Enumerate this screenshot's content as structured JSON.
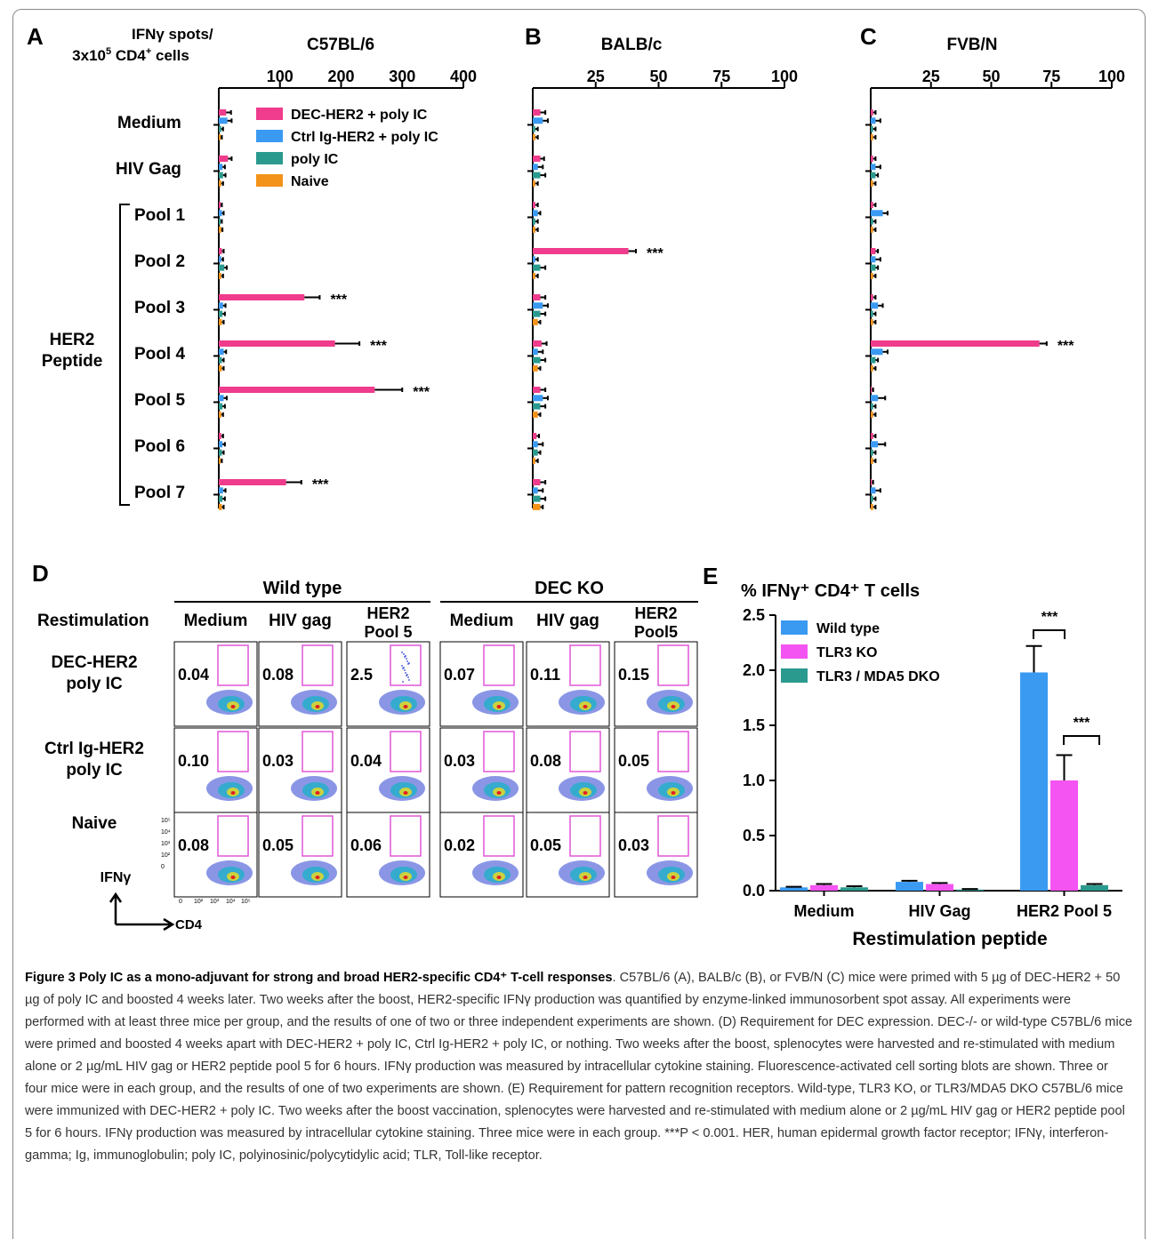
{
  "figure": {
    "panel_letters": [
      "A",
      "B",
      "C",
      "D",
      "E"
    ],
    "colors": {
      "dec_her2": "#ef3c8c",
      "ctrl_ig": "#3a9af2",
      "poly_ic": "#2b9a8e",
      "naive": "#f39319",
      "wild_type": "#3a9af2",
      "tlr3_ko": "#f454f1",
      "tlr3_mda5": "#2b9a8e",
      "gate": "#e056d8"
    }
  },
  "panelA_header": {
    "line1": "IFNγ spots/",
    "line2_pre": "3x10",
    "line2_sup1": "5",
    "line2_mid": " CD4",
    "line2_sup2": "+",
    "line2_post": " cells"
  },
  "row_labels": [
    "Medium",
    "HIV Gag",
    "Pool 1",
    "Pool 2",
    "Pool 3",
    "Pool 4",
    "Pool 5",
    "Pool 6",
    "Pool 7"
  ],
  "her2_label": [
    "HER2",
    "Peptide"
  ],
  "significance": "***",
  "legend_A": [
    "DEC-HER2 + poly IC",
    "Ctrl Ig-HER2 + poly IC",
    "poly IC",
    "Naive"
  ],
  "chart_data": [
    {
      "type": "bar",
      "panel": "A",
      "title": "C57BL/6",
      "orientation": "horizontal",
      "categories": [
        "Medium",
        "HIV Gag",
        "Pool 1",
        "Pool 2",
        "Pool 3",
        "Pool 4",
        "Pool 5",
        "Pool 6",
        "Pool 7"
      ],
      "xlim": [
        0,
        400
      ],
      "xticks": [
        100,
        200,
        300,
        400
      ],
      "series": [
        {
          "name": "DEC-HER2 + poly IC",
          "values": [
            12,
            15,
            3,
            5,
            140,
            190,
            255,
            4,
            110
          ],
          "errors": [
            8,
            6,
            2,
            3,
            25,
            40,
            45,
            3,
            25
          ]
        },
        {
          "name": "Ctrl Ig-HER2 + poly IC",
          "values": [
            14,
            6,
            5,
            4,
            7,
            8,
            8,
            6,
            7
          ],
          "errors": [
            7,
            4,
            3,
            3,
            4,
            4,
            5,
            4,
            4
          ]
        },
        {
          "name": "poly IC",
          "values": [
            4,
            7,
            3,
            9,
            6,
            5,
            6,
            5,
            6
          ],
          "errors": [
            3,
            4,
            2,
            4,
            4,
            3,
            4,
            3,
            4
          ]
        },
        {
          "name": "Naive",
          "values": [
            3,
            4,
            4,
            4,
            5,
            5,
            4,
            3,
            5
          ],
          "errors": [
            2,
            3,
            2,
            3,
            3,
            3,
            3,
            2,
            3
          ]
        }
      ],
      "significant": [
        "Pool 3",
        "Pool 4",
        "Pool 5",
        "Pool 7"
      ]
    },
    {
      "type": "bar",
      "panel": "B",
      "title": "BALB/c",
      "orientation": "horizontal",
      "categories": [
        "Medium",
        "HIV Gag",
        "Pool 1",
        "Pool 2",
        "Pool 3",
        "Pool 4",
        "Pool 5",
        "Pool 6",
        "Pool 7"
      ],
      "xlim": [
        0,
        100
      ],
      "xticks": [
        25,
        50,
        75,
        100
      ],
      "series": [
        {
          "name": "DEC-HER2 + poly IC",
          "values": [
            3,
            3,
            1,
            38,
            3,
            3.5,
            3,
            1.5,
            3
          ],
          "errors": [
            2,
            1.5,
            1,
            3,
            2,
            2,
            2,
            1,
            2
          ]
        },
        {
          "name": "Ctrl Ig-HER2 + poly IC",
          "values": [
            4,
            2,
            2,
            1,
            4,
            2,
            4,
            2,
            2
          ],
          "errors": [
            2,
            2,
            1,
            1,
            2,
            2,
            2,
            2,
            2
          ]
        },
        {
          "name": "poly IC",
          "values": [
            1,
            3,
            1,
            3,
            3,
            3,
            3,
            2,
            3
          ],
          "errors": [
            1,
            2,
            1,
            2,
            2,
            2,
            2,
            1,
            2
          ]
        },
        {
          "name": "Naive",
          "values": [
            1,
            1,
            1,
            1,
            2,
            2,
            2,
            1,
            3
          ],
          "errors": [
            1,
            1,
            1,
            1,
            1,
            1,
            1,
            1,
            1
          ]
        }
      ],
      "significant": [
        "Pool 2"
      ]
    },
    {
      "type": "bar",
      "panel": "C",
      "title": "FVB/N",
      "orientation": "horizontal",
      "categories": [
        "Medium",
        "HIV Gag",
        "Pool 1",
        "Pool 2",
        "Pool 3",
        "Pool 4",
        "Pool 5",
        "Pool 6",
        "Pool 7"
      ],
      "xlim": [
        0,
        100
      ],
      "xticks": [
        25,
        50,
        75,
        100
      ],
      "series": [
        {
          "name": "DEC-HER2 + poly IC",
          "values": [
            1,
            1,
            1,
            2,
            1,
            70,
            0.5,
            1,
            0.5
          ],
          "errors": [
            1,
            1,
            1,
            1,
            1,
            3,
            0.5,
            1,
            0.5
          ]
        },
        {
          "name": "Ctrl Ig-HER2 + poly IC",
          "values": [
            2,
            2,
            5,
            2,
            3,
            5,
            3,
            3,
            2
          ],
          "errors": [
            2,
            2,
            2,
            2,
            2,
            2,
            3,
            3,
            2
          ]
        },
        {
          "name": "poly IC",
          "values": [
            1,
            2,
            1,
            2,
            1,
            2,
            1,
            1,
            1
          ],
          "errors": [
            1,
            1,
            1,
            1,
            1,
            1,
            1,
            1,
            1
          ]
        },
        {
          "name": "Naive",
          "values": [
            1,
            1,
            1,
            1,
            1,
            1,
            1,
            1,
            1
          ],
          "errors": [
            1,
            1,
            1,
            1,
            1,
            1,
            1,
            1,
            1
          ]
        }
      ],
      "significant": [
        "Pool 4"
      ]
    },
    {
      "type": "bar",
      "panel": "E",
      "title": "% IFNγ⁺ CD4⁺ T cells",
      "xlabel": "Restimulation peptide",
      "categories": [
        "Medium",
        "HIV Gag",
        "HER2 Pool 5"
      ],
      "ylim": [
        0,
        2.5
      ],
      "yticks": [
        "0.0",
        "0.5",
        "1.0",
        "1.5",
        "2.0",
        "2.5"
      ],
      "series": [
        {
          "name": "Wild type",
          "values": [
            0.03,
            0.08,
            1.98
          ],
          "errors": [
            0.005,
            0.01,
            0.24
          ]
        },
        {
          "name": "TLR3  KO",
          "values": [
            0.05,
            0.06,
            1.0
          ],
          "errors": [
            0.01,
            0.01,
            0.23
          ]
        },
        {
          "name": "TLR3 / MDA5  DKO",
          "values": [
            0.03,
            0.01,
            0.05
          ],
          "errors": [
            0.01,
            0.005,
            0.01
          ]
        }
      ],
      "significant": [
        "HER2 Pool 5: Wild type vs TLR3 KO",
        "HER2 Pool 5: TLR3 KO vs TLR3/MDA5 DKO"
      ]
    }
  ],
  "panelD": {
    "group_titles": [
      "Wild type",
      "DEC KO"
    ],
    "restimulation_label": "Restimulation",
    "columns": [
      "Medium",
      "HIV gag",
      "HER2\nPool 5",
      "Medium",
      "HIV gag",
      "HER2\nPool5"
    ],
    "rows": [
      {
        "label": "DEC-HER2\npoly IC",
        "values": [
          "0.04",
          "0.08",
          "2.5",
          "0.07",
          "0.11",
          "0.15"
        ]
      },
      {
        "label": "Ctrl Ig-HER2\npoly IC",
        "values": [
          "0.10",
          "0.03",
          "0.04",
          "0.03",
          "0.08",
          "0.05"
        ]
      },
      {
        "label": "Naive",
        "values": [
          "0.08",
          "0.05",
          "0.06",
          "0.02",
          "0.05",
          "0.03"
        ]
      }
    ],
    "y_axis_label": "IFNγ",
    "x_axis_label": "CD4",
    "y_ticks": [
      "10⁵",
      "10⁴",
      "10³",
      "10²",
      "0"
    ],
    "x_ticks": [
      "0",
      "10²",
      "10³",
      "10⁴",
      "10⁵"
    ]
  },
  "caption": {
    "title": "Figure 3 Poly IC as a mono-adjuvant for strong and broad HER2-specific CD4⁺ T-cell responses",
    "text": "C57BL/6 (A), BALB/c (B), or FVB/N (C) mice were primed with 5 µg of DEC-HER2 + 50 µg of poly IC and boosted 4 weeks later. Two weeks after the boost, HER2-specific IFNγ production was quantified by enzyme-linked immunosorbent spot assay. All experiments were performed with at least three mice per group, and the results of one of two or three independent experiments are shown. (D) Requirement for DEC expression. DEC-/- or wild-type C57BL/6 mice were primed and boosted 4 weeks apart with DEC-HER2 + poly IC, Ctrl Ig-HER2 + poly IC, or nothing. Two weeks after the boost, splenocytes were harvested and re-stimulated with medium alone or 2 µg/mL HIV gag or HER2 peptide pool 5 for 6 hours. IFNγ production was measured by intracellular cytokine staining. Fluorescence-activated cell sorting blots are shown. Three or four mice were in each group, and the results of one of two experiments are shown. (E) Requirement for pattern recognition receptors. Wild-type, TLR3 KO, or TLR3/MDA5 DKO C57BL/6 mice were immunized with DEC-HER2 + poly IC. Two weeks after the boost vaccination, splenocytes were harvested and re-stimulated with medium alone or 2 µg/mL HIV gag or HER2 peptide pool 5 for 6 hours. IFNγ production was measured by intracellular cytokine staining. Three mice were in each group. ***P < 0.001. HER, human epidermal growth factor receptor; IFNγ, interferon-gamma; Ig, immunoglobulin; poly IC, polyinosinic/polycytidylic acid; TLR, Toll-like receptor."
  }
}
